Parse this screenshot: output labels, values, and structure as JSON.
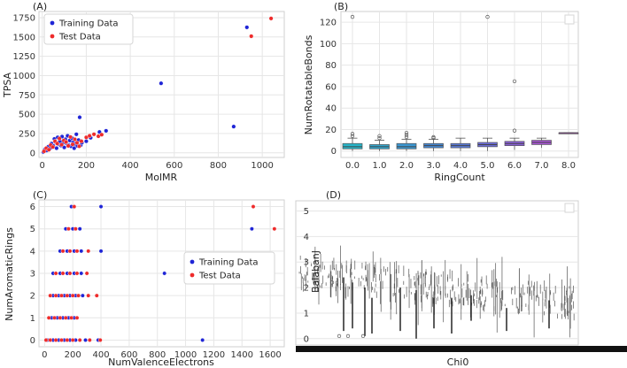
{
  "colors": {
    "train": "#1f25d6",
    "test": "#ee2b2b",
    "grid": "#e6e6e6",
    "frame": "#cfcfcf",
    "box_palette": [
      "#27b5c9",
      "#32a6cf",
      "#3b97d2",
      "#4588d4",
      "#5a7ad6",
      "#6b6cd6",
      "#8a5fd8",
      "#a955d6",
      "#c04fd2"
    ]
  },
  "chart_data": [
    {
      "panel": "(A)",
      "type": "scatter",
      "xlabel": "MolMR",
      "ylabel": "TPSA",
      "xlim": [
        -15,
        1100
      ],
      "ylim": [
        -60,
        1830
      ],
      "xticks": [
        0,
        200,
        400,
        600,
        800,
        1000
      ],
      "yticks": [
        0,
        250,
        500,
        750,
        1000,
        1250,
        1500,
        1750
      ],
      "legend": {
        "placement": "top-left",
        "entries": [
          "Training Data",
          "Test Data"
        ]
      },
      "series": [
        {
          "name": "Training Data",
          "points": [
            [
              5,
              10
            ],
            [
              12,
              45
            ],
            [
              20,
              30
            ],
            [
              28,
              80
            ],
            [
              35,
              55
            ],
            [
              42,
              120
            ],
            [
              50,
              90
            ],
            [
              55,
              180
            ],
            [
              60,
              140
            ],
            [
              65,
              60
            ],
            [
              70,
              200
            ],
            [
              75,
              110
            ],
            [
              80,
              150
            ],
            [
              85,
              95
            ],
            [
              90,
              210
            ],
            [
              95,
              130
            ],
            [
              100,
              70
            ],
            [
              105,
              175
            ],
            [
              110,
              125
            ],
            [
              115,
              220
            ],
            [
              120,
              100
            ],
            [
              125,
              160
            ],
            [
              130,
              85
            ],
            [
              135,
              190
            ],
            [
              140,
              135
            ],
            [
              145,
              60
            ],
            [
              150,
              115
            ],
            [
              155,
              240
            ],
            [
              160,
              90
            ],
            [
              165,
              165
            ],
            [
              170,
              460
            ],
            [
              175,
              100
            ],
            [
              180,
              130
            ],
            [
              200,
              150
            ],
            [
              220,
              195
            ],
            [
              260,
              270
            ],
            [
              290,
              285
            ],
            [
              540,
              900
            ],
            [
              870,
              340
            ],
            [
              930,
              1625
            ]
          ]
        },
        {
          "name": "Test Data",
          "points": [
            [
              8,
              20
            ],
            [
              18,
              60
            ],
            [
              30,
              40
            ],
            [
              38,
              100
            ],
            [
              48,
              75
            ],
            [
              58,
              150
            ],
            [
              68,
              120
            ],
            [
              78,
              185
            ],
            [
              88,
              105
            ],
            [
              98,
              160
            ],
            [
              108,
              140
            ],
            [
              118,
              90
            ],
            [
              128,
              205
            ],
            [
              138,
              110
            ],
            [
              148,
              175
            ],
            [
              158,
              130
            ],
            [
              168,
              85
            ],
            [
              178,
              150
            ],
            [
              200,
              200
            ],
            [
              215,
              220
            ],
            [
              235,
              240
            ],
            [
              255,
              215
            ],
            [
              270,
              235
            ],
            [
              950,
              1510
            ],
            [
              1040,
              1740
            ]
          ]
        }
      ]
    },
    {
      "panel": "(B)",
      "type": "box",
      "xlabel": "RingCount",
      "ylabel": "NumRotatableBonds",
      "ylim": [
        -6,
        130
      ],
      "yticks": [
        0,
        20,
        40,
        60,
        80,
        100,
        120
      ],
      "categories": [
        "0.0",
        "1.0",
        "2.0",
        "3.0",
        "4.0",
        "5.0",
        "6.0",
        "7.0",
        "8.0"
      ],
      "boxes": [
        {
          "q1": 2,
          "median": 4,
          "q3": 7,
          "whisker_low": 0,
          "whisker_high": 12,
          "outliers": [
            14,
            16,
            125
          ]
        },
        {
          "q1": 2,
          "median": 4,
          "q3": 6,
          "whisker_low": 0,
          "whisker_high": 10,
          "outliers": [
            12,
            14
          ]
        },
        {
          "q1": 2,
          "median": 4,
          "q3": 7,
          "whisker_low": 0,
          "whisker_high": 11,
          "outliers": [
            13,
            15,
            17
          ]
        },
        {
          "q1": 3,
          "median": 5,
          "q3": 7,
          "whisker_low": 0,
          "whisker_high": 11,
          "outliers": [
            12,
            13
          ]
        },
        {
          "q1": 3,
          "median": 5,
          "q3": 7,
          "whisker_low": 0,
          "whisker_high": 12,
          "outliers": []
        },
        {
          "q1": 4,
          "median": 6,
          "q3": 8,
          "whisker_low": 0,
          "whisker_high": 12,
          "outliers": [
            125
          ]
        },
        {
          "q1": 5,
          "median": 7,
          "q3": 9,
          "whisker_low": 1,
          "whisker_high": 12,
          "outliers": [
            19,
            65
          ]
        },
        {
          "q1": 6,
          "median": 8,
          "q3": 10,
          "whisker_low": 3,
          "whisker_high": 12,
          "outliers": []
        },
        {
          "q1": 17,
          "median": 17,
          "q3": 17,
          "whisker_low": 17,
          "whisker_high": 17,
          "outliers": []
        }
      ]
    },
    {
      "panel": "(C)",
      "type": "scatter",
      "xlabel": "NumValenceElectrons",
      "ylabel": "NumAromaticRings",
      "xlim": [
        -40,
        1700
      ],
      "ylim": [
        -0.3,
        6.3
      ],
      "xticks": [
        0,
        200,
        400,
        600,
        800,
        1000,
        1200,
        1400,
        1600
      ],
      "yticks": [
        0,
        1,
        2,
        3,
        4,
        5,
        6
      ],
      "legend": {
        "placement": "center-right",
        "entries": [
          "Training Data",
          "Test Data"
        ]
      },
      "series": [
        {
          "name": "Training Data",
          "points": [
            [
              20,
              0
            ],
            [
              60,
              0
            ],
            [
              100,
              0
            ],
            [
              140,
              0
            ],
            [
              180,
              0
            ],
            [
              220,
              0
            ],
            [
              290,
              0
            ],
            [
              380,
              0
            ],
            [
              1120,
              0
            ],
            [
              50,
              1
            ],
            [
              90,
              1
            ],
            [
              130,
              1
            ],
            [
              170,
              1
            ],
            [
              210,
              1
            ],
            [
              60,
              2
            ],
            [
              100,
              2
            ],
            [
              140,
              2
            ],
            [
              180,
              2
            ],
            [
              220,
              2
            ],
            [
              270,
              2
            ],
            [
              60,
              3
            ],
            [
              110,
              3
            ],
            [
              160,
              3
            ],
            [
              210,
              3
            ],
            [
              260,
              3
            ],
            [
              850,
              3
            ],
            [
              110,
              4
            ],
            [
              160,
              4
            ],
            [
              210,
              4
            ],
            [
              260,
              4
            ],
            [
              400,
              4
            ],
            [
              150,
              5
            ],
            [
              200,
              5
            ],
            [
              250,
              5
            ],
            [
              1470,
              5
            ],
            [
              190,
              6
            ],
            [
              400,
              6
            ]
          ]
        },
        {
          "name": "Test Data",
          "points": [
            [
              10,
              0
            ],
            [
              40,
              0
            ],
            [
              80,
              0
            ],
            [
              120,
              0
            ],
            [
              160,
              0
            ],
            [
              200,
              0
            ],
            [
              250,
              0
            ],
            [
              320,
              0
            ],
            [
              395,
              0
            ],
            [
              30,
              1
            ],
            [
              70,
              1
            ],
            [
              110,
              1
            ],
            [
              150,
              1
            ],
            [
              190,
              1
            ],
            [
              230,
              1
            ],
            [
              40,
              2
            ],
            [
              80,
              2
            ],
            [
              120,
              2
            ],
            [
              160,
              2
            ],
            [
              200,
              2
            ],
            [
              240,
              2
            ],
            [
              310,
              2
            ],
            [
              370,
              2
            ],
            [
              80,
              3
            ],
            [
              130,
              3
            ],
            [
              180,
              3
            ],
            [
              230,
              3
            ],
            [
              300,
              3
            ],
            [
              130,
              4
            ],
            [
              180,
              4
            ],
            [
              230,
              4
            ],
            [
              310,
              4
            ],
            [
              170,
              5
            ],
            [
              220,
              5
            ],
            [
              1630,
              5
            ],
            [
              210,
              6
            ],
            [
              1480,
              6
            ]
          ]
        }
      ]
    },
    {
      "panel": "(D)",
      "type": "violin",
      "xlabel": "Chi0",
      "ylabel": "BalabanJ",
      "ylim": [
        -0.25,
        5.4
      ],
      "yticks": [
        0,
        1,
        2,
        3,
        4,
        5
      ]
    }
  ],
  "panels": {
    "a": {
      "title": "(A)",
      "xlabel": "MolMR",
      "ylabel": "TPSA",
      "xtick_labels": [
        "0",
        "200",
        "400",
        "600",
        "800",
        "1000"
      ],
      "ytick_labels": [
        "0",
        "250",
        "500",
        "750",
        "1000",
        "1250",
        "1500",
        "1750"
      ],
      "legend": [
        "Training Data",
        "Test Data"
      ]
    },
    "b": {
      "title": "(B)",
      "xlabel": "RingCount",
      "ylabel": "NumRotatableBonds",
      "xtick_labels": [
        "0.0",
        "1.0",
        "2.0",
        "3.0",
        "4.0",
        "5.0",
        "6.0",
        "7.0",
        "8.0"
      ],
      "ytick_labels": [
        "0",
        "20",
        "40",
        "60",
        "80",
        "100",
        "120"
      ]
    },
    "c": {
      "title": "(C)",
      "xlabel": "NumValenceElectrons",
      "ylabel": "NumAromaticRings",
      "xtick_labels": [
        "0",
        "200",
        "400",
        "600",
        "800",
        "1000",
        "1200",
        "1400",
        "1600"
      ],
      "ytick_labels": [
        "0",
        "1",
        "2",
        "3",
        "4",
        "5",
        "6"
      ],
      "legend": [
        "Training Data",
        "Test Data"
      ]
    },
    "d": {
      "title": "(D)",
      "xlabel": "Chi0",
      "ylabel": "BalabanJ",
      "ytick_labels": [
        "0",
        "1",
        "2",
        "3",
        "4",
        "5"
      ]
    }
  }
}
